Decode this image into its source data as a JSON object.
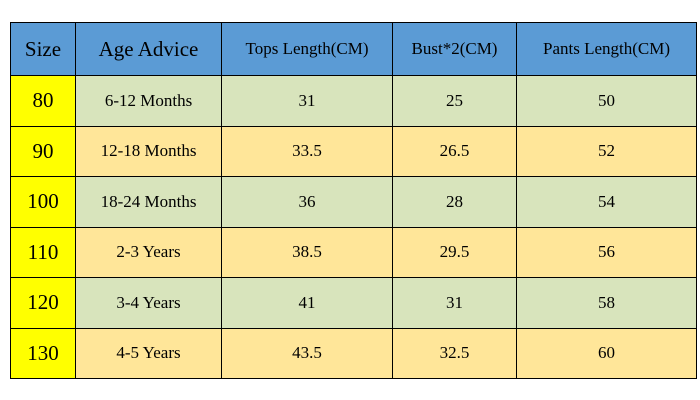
{
  "table": {
    "headers": {
      "size": "Size",
      "age": "Age Advice",
      "tops": "Tops Length(CM)",
      "bust": "Bust*2(CM)",
      "pants": "Pants Length(CM)"
    },
    "rows": [
      {
        "size": "80",
        "age": "6-12 Months",
        "tops": "31",
        "bust": "25",
        "pants": "50"
      },
      {
        "size": "90",
        "age": "12-18 Months",
        "tops": "33.5",
        "bust": "26.5",
        "pants": "52"
      },
      {
        "size": "100",
        "age": "18-24 Months",
        "tops": "36",
        "bust": "28",
        "pants": "54"
      },
      {
        "size": "110",
        "age": "2-3 Years",
        "tops": "38.5",
        "bust": "29.5",
        "pants": "56"
      },
      {
        "size": "120",
        "age": "3-4 Years",
        "tops": "41",
        "bust": "31",
        "pants": "58"
      },
      {
        "size": "130",
        "age": "4-5 Years",
        "tops": "43.5",
        "bust": "32.5",
        "pants": "60"
      }
    ],
    "colors": {
      "header": "#5b9bd5",
      "size_column": "#ffff00",
      "row_green": "#d8e4bc",
      "row_tan": "#ffe699"
    }
  }
}
